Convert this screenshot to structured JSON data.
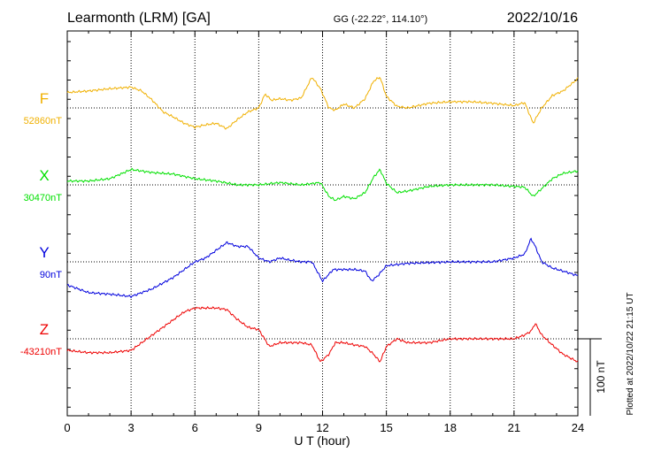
{
  "chart_data": {
    "type": "line",
    "title": "Learmonth (LRM)  [GA]",
    "coordinates": "GG (-22.22°, 114.10°)",
    "date": "2022/10/16",
    "xlabel": "U T (hour)",
    "xlim": [
      0,
      24
    ],
    "x_ticks": [
      "0",
      "3",
      "6",
      "9",
      "12",
      "15",
      "18",
      "21",
      "24"
    ],
    "scale_bar_label": "100 nT",
    "scale_bar_value_nT": 100,
    "plotted_note": "Plotted at 2022/10/22 21:15 UT",
    "grid": true,
    "series": [
      {
        "name": "F",
        "baseline_label": "52860nT",
        "color": "#f0b000",
        "x": [
          0,
          1,
          2,
          3,
          3.5,
          4,
          4.5,
          5,
          5.5,
          6,
          6.5,
          7,
          7.5,
          8,
          8.5,
          9,
          9.3,
          9.6,
          10,
          10.5,
          11,
          11.5,
          11.9,
          12.3,
          12.6,
          13,
          13.5,
          14,
          14.4,
          14.7,
          15,
          15.5,
          16,
          17,
          18,
          19,
          20,
          21,
          21.5,
          21.9,
          22.3,
          22.8,
          23.3,
          24
        ],
        "values": [
          20,
          22,
          25,
          27,
          22,
          10,
          -5,
          -12,
          -20,
          -25,
          -22,
          -20,
          -27,
          -15,
          -5,
          0,
          18,
          10,
          12,
          10,
          13,
          40,
          25,
          0,
          -3,
          5,
          0,
          12,
          35,
          40,
          15,
          2,
          0,
          6,
          8,
          8,
          6,
          3,
          7,
          -20,
          0,
          16,
          22,
          38
        ]
      },
      {
        "name": "X",
        "baseline_label": "30470nT",
        "color": "#00e000",
        "x": [
          0,
          1,
          2,
          3,
          4,
          5,
          6,
          7,
          8,
          9,
          10,
          11,
          11.9,
          12.3,
          12.6,
          13,
          13.5,
          14,
          14.4,
          14.7,
          15,
          15.5,
          16,
          17,
          18,
          19,
          20,
          21,
          21.5,
          21.9,
          22.3,
          22.8,
          23.3,
          24
        ],
        "values": [
          5,
          5,
          8,
          20,
          16,
          14,
          8,
          5,
          0,
          0,
          3,
          0,
          3,
          -15,
          -20,
          -15,
          -18,
          -10,
          10,
          20,
          2,
          -10,
          -8,
          -2,
          0,
          0,
          0,
          -2,
          -3,
          -15,
          -5,
          8,
          15,
          18
        ]
      },
      {
        "name": "Y",
        "baseline_label": "90nT",
        "color": "#0000dd",
        "x": [
          0,
          0.5,
          1,
          2,
          3,
          4,
          5,
          6,
          6.5,
          7,
          7.5,
          8,
          8.5,
          9,
          9.5,
          10,
          10.5,
          11,
          11.5,
          11.8,
          12,
          12.5,
          13,
          13.5,
          14,
          14.3,
          14.6,
          15,
          16,
          17,
          18,
          19,
          20,
          21,
          21.5,
          21.8,
          22,
          22.3,
          22.8,
          23.3,
          24
        ],
        "values": [
          -30,
          -35,
          -40,
          -42,
          -45,
          -35,
          -20,
          0,
          5,
          15,
          25,
          20,
          20,
          5,
          0,
          5,
          2,
          0,
          0,
          -15,
          -25,
          -10,
          -10,
          -10,
          -12,
          -25,
          -18,
          -5,
          -2,
          -1,
          0,
          0,
          0,
          5,
          10,
          30,
          20,
          0,
          -8,
          -12,
          -18
        ]
      },
      {
        "name": "Z",
        "baseline_label": "-43210nT",
        "color": "#ee0000",
        "x": [
          0,
          1,
          2,
          3,
          4,
          5,
          5.5,
          6,
          6.5,
          7,
          7.5,
          8,
          8.5,
          9,
          9.5,
          10,
          10.5,
          11,
          11.5,
          11.9,
          12.3,
          12.6,
          13,
          13.5,
          14,
          14.4,
          14.7,
          15,
          15.5,
          16,
          17,
          18,
          19,
          20,
          21,
          21.5,
          21.8,
          22,
          22.3,
          22.8,
          23.3,
          24
        ],
        "values": [
          -15,
          -18,
          -18,
          -15,
          5,
          25,
          35,
          40,
          40,
          40,
          38,
          25,
          15,
          12,
          -10,
          -5,
          -5,
          -5,
          -8,
          -30,
          -20,
          -5,
          -5,
          -8,
          -10,
          -20,
          -30,
          -10,
          0,
          -5,
          -5,
          0,
          0,
          0,
          0,
          5,
          10,
          20,
          5,
          -8,
          -20,
          -30
        ]
      }
    ]
  }
}
